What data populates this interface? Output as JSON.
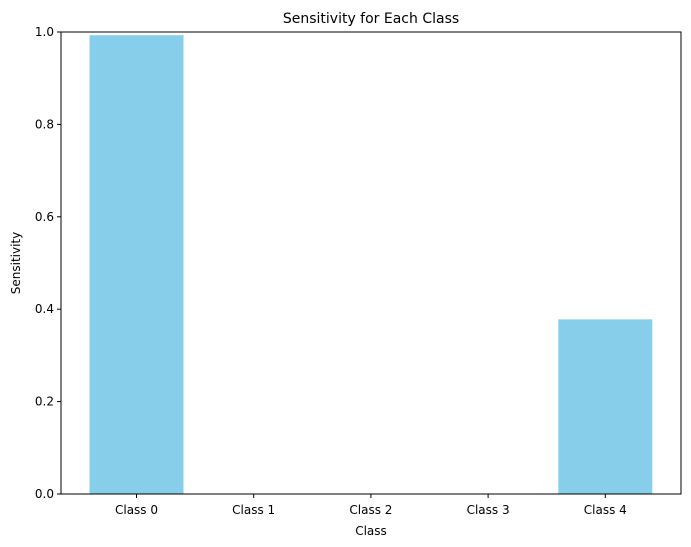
{
  "chart_data": {
    "type": "bar",
    "title": "Sensitivity for Each Class",
    "xlabel": "Class",
    "ylabel": "Sensitivity",
    "categories": [
      "Class 0",
      "Class 1",
      "Class 2",
      "Class 3",
      "Class 4"
    ],
    "values": [
      0.993,
      0.0,
      0.0,
      0.0,
      0.378
    ],
    "ylim": [
      0,
      1
    ],
    "yticks": [
      "0.0",
      "0.2",
      "0.4",
      "0.6",
      "0.8",
      "1.0"
    ],
    "grid": false,
    "bar_color": "#87CEEB"
  }
}
